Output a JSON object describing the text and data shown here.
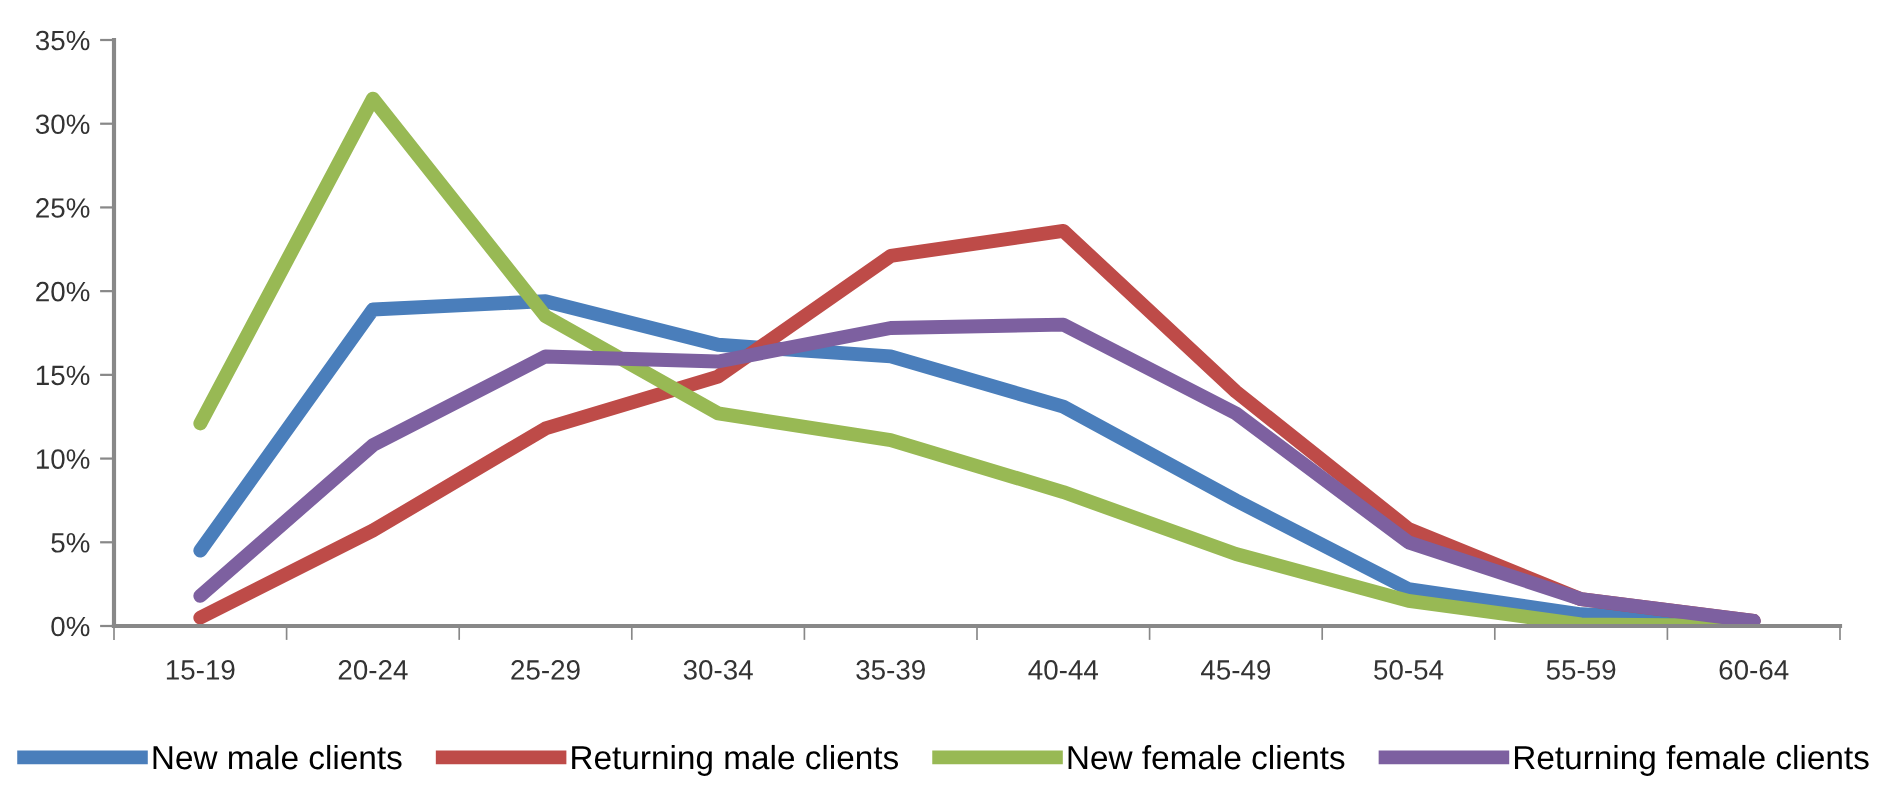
{
  "chart_data": {
    "type": "line",
    "categories": [
      "15-19",
      "20-24",
      "25-29",
      "30-34",
      "35-39",
      "40-44",
      "45-49",
      "50-54",
      "55-59",
      "60-64"
    ],
    "series": [
      {
        "name": "New male clients",
        "color": "#4a7ebb",
        "values": [
          4.5,
          18.9,
          19.4,
          16.8,
          16.1,
          13.1,
          7.5,
          2.2,
          0.7,
          0.3
        ]
      },
      {
        "name": "Returning male clients",
        "color": "#be4b48",
        "values": [
          0.5,
          5.7,
          11.8,
          14.9,
          22.1,
          23.6,
          14.0,
          5.8,
          1.6,
          0.3
        ]
      },
      {
        "name": "New female clients",
        "color": "#98b954",
        "values": [
          12.1,
          31.5,
          18.5,
          12.7,
          11.1,
          8.0,
          4.3,
          1.5,
          0.1,
          0.0
        ]
      },
      {
        "name": "Returning female clients",
        "color": "#7d60a0",
        "values": [
          1.8,
          10.8,
          16.1,
          15.8,
          17.8,
          18.0,
          12.7,
          5.0,
          1.6,
          0.3
        ]
      }
    ],
    "ylim": [
      0,
      35
    ],
    "yticks": [
      {
        "value": 0,
        "label": "0%"
      },
      {
        "value": 5,
        "label": "5%"
      },
      {
        "value": 10,
        "label": "10%"
      },
      {
        "value": 15,
        "label": "15%"
      },
      {
        "value": 20,
        "label": "20%"
      },
      {
        "value": 25,
        "label": "25%"
      },
      {
        "value": 30,
        "label": "30%"
      },
      {
        "value": 35,
        "label": "35%"
      }
    ],
    "grid": false,
    "legend": "bottom",
    "marker": "none",
    "line_style": "solid"
  }
}
